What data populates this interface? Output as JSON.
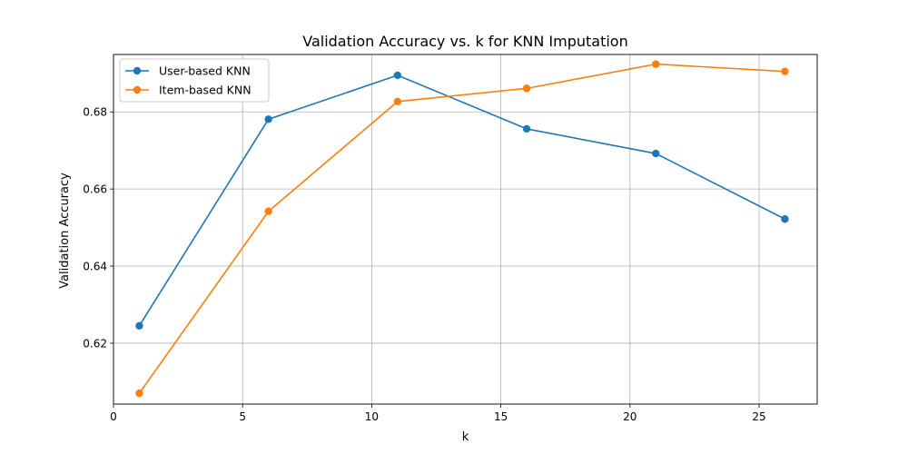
{
  "chart_data": {
    "type": "line",
    "title": "Validation Accuracy vs. k for KNN Imputation",
    "xlabel": "k",
    "ylabel": "Validation Accuracy",
    "x": [
      1,
      6,
      11,
      16,
      21,
      26
    ],
    "xlim": [
      0,
      27.25
    ],
    "ylim": [
      0.6042,
      0.6949
    ],
    "xticks": [
      0,
      5,
      10,
      15,
      20,
      25
    ],
    "yticks": [
      0.62,
      0.64,
      0.66,
      0.68
    ],
    "xtick_labels": [
      "0",
      "5",
      "10",
      "15",
      "20",
      "25"
    ],
    "ytick_labels": [
      "0.62",
      "0.64",
      "0.66",
      "0.68"
    ],
    "grid": true,
    "legend_position": "top-left",
    "series": [
      {
        "name": "User-based KNN",
        "color": "#1f77b4",
        "marker": "circle",
        "values": [
          0.6245,
          0.6781,
          0.6895,
          0.6756,
          0.6692,
          0.6522
        ]
      },
      {
        "name": "Item-based KNN",
        "color": "#ff7f0e",
        "marker": "circle",
        "values": [
          0.607,
          0.6542,
          0.6827,
          0.6861,
          0.6924,
          0.6905
        ]
      }
    ]
  }
}
